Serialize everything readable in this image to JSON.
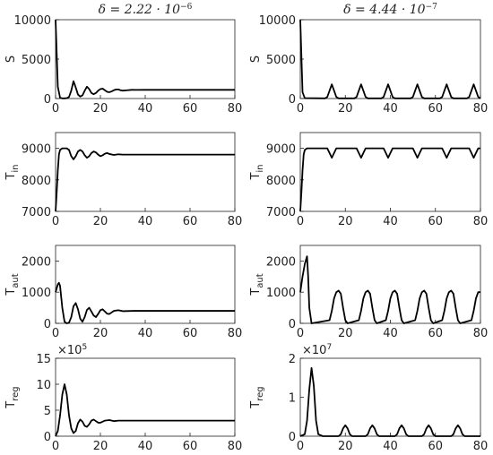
{
  "chart_data": [
    {
      "type": "line",
      "title": "δ = 2.22 · 10",
      "title_sup": "−6",
      "ylabel": "S",
      "color": "#000000",
      "xlim": [
        0,
        80
      ],
      "xticks": [
        0,
        20,
        40,
        60,
        80
      ],
      "ylim": [
        0,
        10000
      ],
      "yticks": [
        0,
        5000,
        10000
      ],
      "x": [
        0,
        1,
        2,
        3,
        4,
        5,
        6,
        7,
        8,
        9,
        10,
        11,
        12,
        13,
        14,
        15,
        16,
        17,
        18,
        19,
        20,
        21,
        22,
        23,
        24,
        25,
        26,
        27,
        28,
        29,
        30,
        32,
        34,
        36,
        40,
        80
      ],
      "values": [
        10000,
        1500,
        100,
        20,
        20,
        50,
        200,
        1000,
        2200,
        1400,
        500,
        250,
        400,
        1000,
        1500,
        1200,
        700,
        550,
        700,
        1000,
        1200,
        1250,
        1050,
        850,
        800,
        900,
        1050,
        1150,
        1150,
        1050,
        1000,
        1050,
        1100,
        1090,
        1100,
        1100
      ]
    },
    {
      "type": "line",
      "title": "δ = 4.44 · 10",
      "title_sup": "−7",
      "ylabel": "S",
      "color": "#000000",
      "xlim": [
        0,
        80
      ],
      "xticks": [
        0,
        20,
        40,
        60,
        80
      ],
      "ylim": [
        0,
        10000
      ],
      "yticks": [
        0,
        5000,
        10000
      ],
      "x": [
        0,
        1,
        2,
        11,
        12,
        13,
        14,
        15,
        16,
        17,
        24,
        25,
        26,
        27,
        28,
        29,
        30,
        36,
        37,
        38,
        39,
        40,
        41,
        42,
        49,
        50,
        51,
        52,
        53,
        54,
        55,
        62,
        63,
        64,
        65,
        66,
        67,
        68,
        74,
        75,
        76,
        77,
        78,
        79,
        80
      ],
      "values": [
        10000,
        800,
        50,
        20,
        200,
        1000,
        1800,
        1000,
        200,
        20,
        20,
        200,
        1000,
        1800,
        1000,
        200,
        20,
        20,
        200,
        1000,
        1800,
        1000,
        200,
        20,
        20,
        200,
        1000,
        1800,
        1000,
        200,
        20,
        20,
        200,
        1000,
        1800,
        1000,
        200,
        20,
        20,
        200,
        1000,
        1800,
        1000,
        200,
        20
      ]
    },
    {
      "type": "line",
      "ylabel": "T",
      "ylabel_subscript": "in",
      "color": "#000000",
      "xlim": [
        0,
        80
      ],
      "xticks": [
        0,
        20,
        40,
        60,
        80
      ],
      "ylim": [
        7000,
        9500
      ],
      "yticks": [
        7000,
        8000,
        9000
      ],
      "x": [
        0,
        0.5,
        1,
        1.5,
        2,
        3,
        5,
        6,
        7,
        8,
        9,
        10,
        11,
        12,
        13,
        14,
        15,
        16,
        17,
        18,
        19,
        20,
        21,
        22,
        23,
        24,
        26,
        28,
        30,
        35,
        80
      ],
      "values": [
        7000,
        7600,
        8300,
        8800,
        8950,
        9000,
        9000,
        8950,
        8750,
        8650,
        8750,
        8900,
        8950,
        8900,
        8780,
        8700,
        8750,
        8850,
        8900,
        8870,
        8800,
        8750,
        8780,
        8830,
        8850,
        8820,
        8790,
        8810,
        8800,
        8800,
        8800
      ]
    },
    {
      "type": "line",
      "ylabel": "T",
      "ylabel_subscript": "in",
      "color": "#000000",
      "xlim": [
        0,
        80
      ],
      "xticks": [
        0,
        20,
        40,
        60,
        80
      ],
      "ylim": [
        7000,
        9500
      ],
      "yticks": [
        7000,
        8000,
        9000
      ],
      "x": [
        0,
        0.5,
        1,
        1.5,
        2,
        3,
        12,
        13,
        14,
        15,
        16,
        25,
        26,
        27,
        28,
        29,
        37,
        38,
        39,
        40,
        41,
        50,
        51,
        52,
        53,
        54,
        63,
        64,
        65,
        66,
        67,
        75,
        76,
        77,
        78,
        79,
        80
      ],
      "values": [
        7000,
        7600,
        8300,
        8800,
        8950,
        9000,
        9000,
        8850,
        8700,
        8850,
        9000,
        9000,
        8850,
        8700,
        8850,
        9000,
        9000,
        8850,
        8700,
        8850,
        9000,
        9000,
        8850,
        8700,
        8850,
        9000,
        9000,
        8850,
        8700,
        8850,
        9000,
        9000,
        8850,
        8700,
        8850,
        9000,
        9000
      ]
    },
    {
      "type": "line",
      "ylabel": "T",
      "ylabel_subscript": "aut",
      "color": "#000000",
      "xlim": [
        0,
        80
      ],
      "xticks": [
        0,
        20,
        40,
        60,
        80
      ],
      "ylim": [
        0,
        2500
      ],
      "yticks": [
        0,
        1000,
        2000
      ],
      "x": [
        0,
        1,
        1.5,
        2,
        3,
        4,
        5,
        6,
        7,
        8,
        9,
        10,
        11,
        12,
        13,
        14,
        15,
        16,
        17,
        18,
        19,
        20,
        21,
        22,
        23,
        24,
        26,
        28,
        30,
        35,
        80
      ],
      "values": [
        1000,
        1250,
        1300,
        1200,
        500,
        50,
        0,
        20,
        200,
        550,
        650,
        450,
        150,
        50,
        200,
        430,
        500,
        380,
        250,
        200,
        300,
        420,
        450,
        380,
        310,
        300,
        400,
        420,
        390,
        400,
        400
      ]
    },
    {
      "type": "line",
      "ylabel": "T",
      "ylabel_subscript": "aut",
      "color": "#000000",
      "xlim": [
        0,
        80
      ],
      "xticks": [
        0,
        20,
        40,
        60,
        80
      ],
      "ylim": [
        0,
        2500
      ],
      "yticks": [
        0,
        1000,
        2000
      ],
      "x": [
        0,
        1,
        2,
        3,
        3.5,
        4,
        5,
        13,
        14,
        15,
        16,
        17,
        18,
        19,
        20,
        21,
        26,
        27,
        28,
        29,
        30,
        31,
        32,
        33,
        34,
        38,
        39,
        40,
        41,
        42,
        43,
        44,
        45,
        46,
        51,
        52,
        53,
        54,
        55,
        56,
        57,
        58,
        59,
        63,
        64,
        65,
        66,
        67,
        68,
        69,
        70,
        71,
        76,
        77,
        78,
        79,
        80
      ],
      "values": [
        1000,
        1500,
        1900,
        2150,
        1500,
        500,
        0,
        100,
        400,
        800,
        1000,
        1050,
        950,
        500,
        100,
        0,
        100,
        400,
        800,
        1000,
        1050,
        950,
        500,
        100,
        0,
        100,
        400,
        800,
        1000,
        1050,
        950,
        500,
        100,
        0,
        100,
        400,
        800,
        1000,
        1050,
        950,
        500,
        100,
        0,
        100,
        400,
        800,
        1000,
        1050,
        950,
        500,
        100,
        0,
        100,
        400,
        800,
        1000,
        1000
      ]
    },
    {
      "type": "line",
      "ylabel": "T",
      "ylabel_subscript": "reg",
      "y_multiplier": "×10",
      "y_multiplier_exp": "5",
      "color": "#000000",
      "xlim": [
        0,
        80
      ],
      "xticks": [
        0,
        20,
        40,
        60,
        80
      ],
      "ylim": [
        0,
        15
      ],
      "yticks": [
        0,
        5,
        10,
        15
      ],
      "x": [
        0,
        1,
        2,
        3,
        4,
        5,
        6,
        7,
        8,
        9,
        10,
        11,
        12,
        13,
        14,
        15,
        16,
        17,
        18,
        19,
        20,
        22,
        24,
        26,
        28,
        30,
        35,
        80
      ],
      "values": [
        0,
        1,
        4,
        8,
        10,
        8,
        4,
        1.5,
        0.6,
        1,
        2.5,
        3.2,
        2.8,
        2,
        1.8,
        2.3,
        3,
        3.2,
        2.9,
        2.6,
        2.6,
        3,
        3.1,
        2.9,
        3,
        3,
        3,
        3
      ]
    },
    {
      "type": "line",
      "ylabel": "T",
      "ylabel_subscript": "reg",
      "y_multiplier": "×10",
      "y_multiplier_exp": "7",
      "color": "#000000",
      "xlim": [
        0,
        80
      ],
      "xticks": [
        0,
        20,
        40,
        60,
        80
      ],
      "ylim": [
        0,
        2
      ],
      "yticks": [
        0,
        1,
        2
      ],
      "x": [
        0,
        2,
        3,
        4,
        5,
        6,
        7,
        8,
        10,
        17,
        18,
        19,
        20,
        21,
        22,
        23,
        29,
        30,
        31,
        32,
        33,
        34,
        35,
        42,
        43,
        44,
        45,
        46,
        47,
        48,
        54,
        55,
        56,
        57,
        58,
        59,
        60,
        67,
        68,
        69,
        70,
        71,
        72,
        73,
        80
      ],
      "values": [
        0,
        0.05,
        0.4,
        1.2,
        1.75,
        1.3,
        0.4,
        0.05,
        0,
        0,
        0.05,
        0.2,
        0.28,
        0.2,
        0.05,
        0,
        0,
        0.05,
        0.2,
        0.28,
        0.2,
        0.05,
        0,
        0,
        0.05,
        0.2,
        0.28,
        0.2,
        0.05,
        0,
        0,
        0.05,
        0.2,
        0.28,
        0.2,
        0.05,
        0,
        0,
        0.05,
        0.2,
        0.28,
        0.2,
        0.05,
        0,
        0
      ]
    }
  ]
}
